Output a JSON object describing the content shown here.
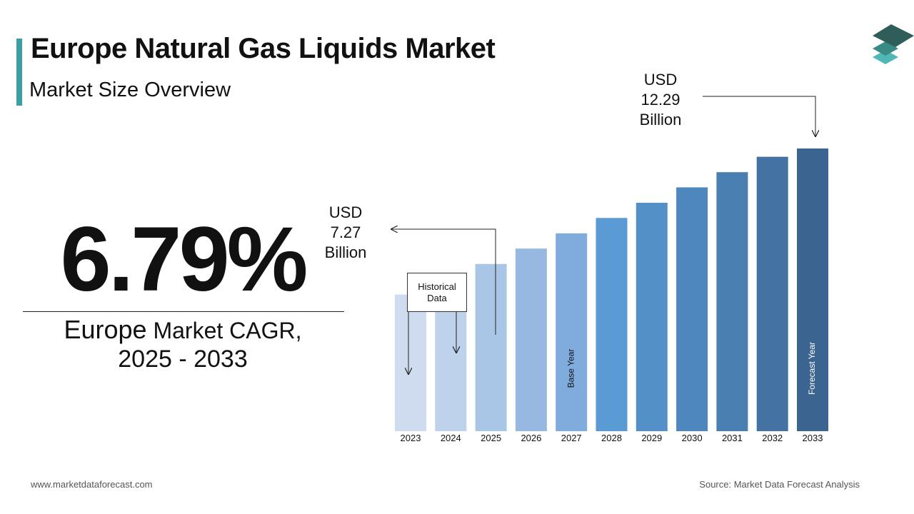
{
  "header": {
    "title": "Europe Natural Gas Liquids Market",
    "subtitle": "Market Size Overview"
  },
  "cagr": {
    "value": "6.79%",
    "label_line1_a": "Europe",
    "label_line1_b": " Market CAGR,",
    "label_line2": "2025 - 2033"
  },
  "callouts": {
    "start_line1": "USD",
    "start_line2": "7.27",
    "start_line3": "Billion",
    "end_line1": "USD",
    "end_line2": "12.29",
    "end_line3": "Billion",
    "historical_line1": "Historical",
    "historical_line2": "Data"
  },
  "footer": {
    "website": "www.marketdataforecast.com",
    "source": "Source: Market Data Forecast Analysis"
  },
  "colors": {
    "accent": "#3a9ea5",
    "logo_top": "#2f5e5a",
    "logo_mid": "#3a8a86",
    "logo_bottom": "#4fb8b4"
  },
  "chart_data": {
    "type": "bar",
    "categories": [
      "2023",
      "2024",
      "2025",
      "2026",
      "2027",
      "2028",
      "2029",
      "2030",
      "2031",
      "2032",
      "2033"
    ],
    "values": [
      5.94,
      6.61,
      7.27,
      7.94,
      8.6,
      9.27,
      9.93,
      10.6,
      11.26,
      11.93,
      12.29
    ],
    "ylim": [
      0,
      12.29
    ],
    "bar_colors": [
      "#cfdcef",
      "#bfd2ec",
      "#aac6e6",
      "#97b9e1",
      "#7fabdd",
      "#5b9bd5",
      "#5490c8",
      "#4e87bd",
      "#4a7fb1",
      "#4473a3",
      "#3b6590"
    ],
    "bar_text": {
      "2027": "Base Year",
      "2033": "Forecast Year"
    },
    "grid": false,
    "legend": "none"
  }
}
